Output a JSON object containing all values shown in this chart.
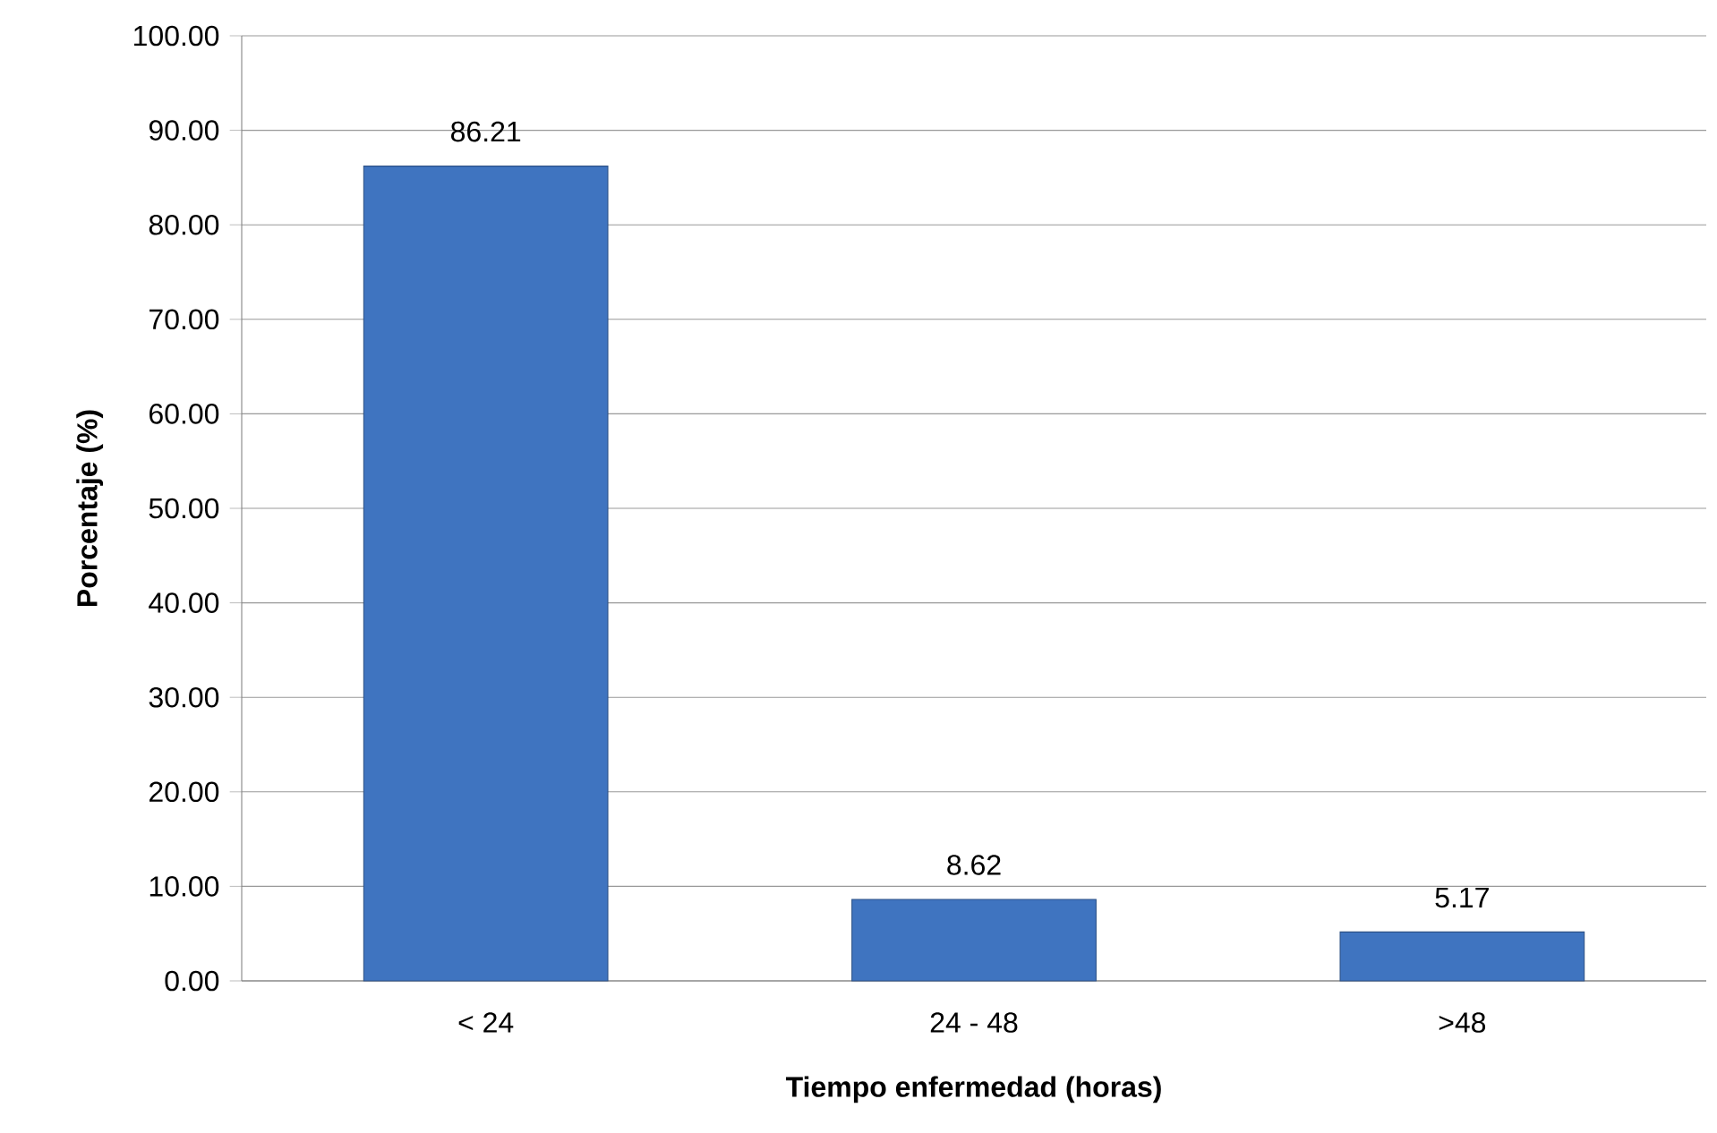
{
  "chart_data": {
    "type": "bar",
    "xlabel": "Tiempo enfermedad (horas)",
    "ylabel": "Porcentaje (%)",
    "categories": [
      "< 24",
      "24 - 48",
      ">48"
    ],
    "values": [
      86.21,
      8.62,
      5.17
    ],
    "color": "#3f74c0",
    "ylim": [
      0,
      100
    ],
    "yticks": [
      {
        "value": 0,
        "label": "0.00"
      },
      {
        "value": 10,
        "label": "10.00"
      },
      {
        "value": 20,
        "label": "20.00"
      },
      {
        "value": 30,
        "label": "30.00"
      },
      {
        "value": 40,
        "label": "40.00"
      },
      {
        "value": 50,
        "label": "50.00"
      },
      {
        "value": 60,
        "label": "60.00"
      },
      {
        "value": 70,
        "label": "70.00"
      },
      {
        "value": 80,
        "label": "80.00"
      },
      {
        "value": 90,
        "label": "90.00"
      },
      {
        "value": 100,
        "label": "100.00"
      }
    ],
    "grid": "y",
    "data_labels": true
  }
}
